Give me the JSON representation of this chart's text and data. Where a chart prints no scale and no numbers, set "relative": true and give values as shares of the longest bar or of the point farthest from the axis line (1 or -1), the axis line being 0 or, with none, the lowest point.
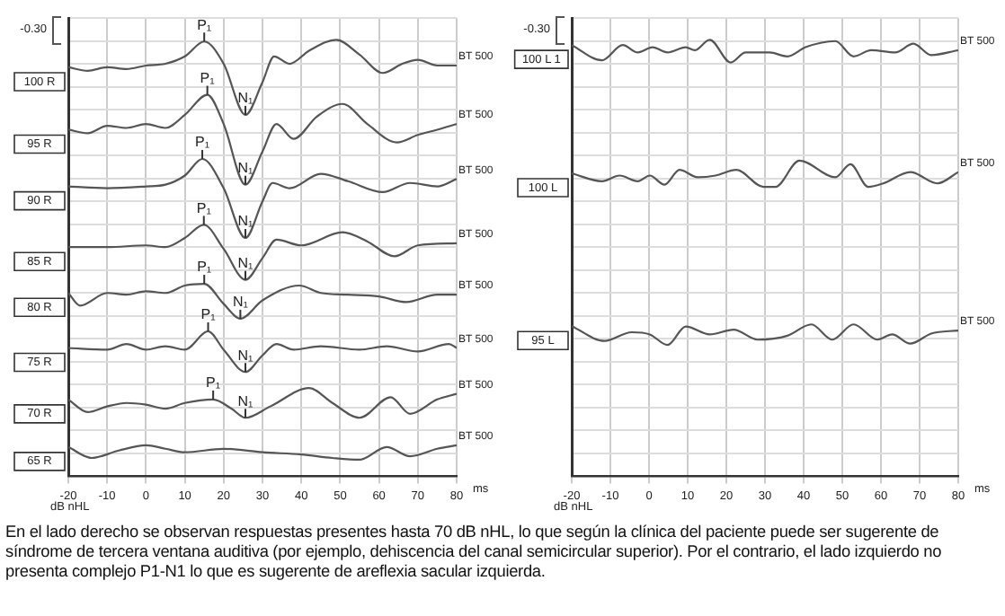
{
  "chart_data": [
    {
      "type": "line",
      "relative": true,
      "xlabel": "ms",
      "xlim": [
        -20,
        80
      ],
      "xticks": [
        -20,
        -10,
        0,
        10,
        20,
        30,
        40,
        50,
        60,
        70,
        80
      ],
      "grid": true,
      "marker": "none",
      "line_style": "solid",
      "series": [
        {
          "name": "100 R",
          "color": "#555555",
          "x": [
            -20,
            -15,
            -10,
            -5,
            0,
            5,
            10,
            15,
            20,
            25.6,
            30,
            33,
            37,
            42,
            49,
            55,
            61,
            66,
            70,
            75,
            80
          ],
          "values": [
            0.937,
            0.929,
            0.937,
            0.933,
            0.941,
            0.945,
            0.962,
            0.996,
            0.945,
            0.828,
            0.903,
            0.962,
            0.945,
            0.975,
            1.0,
            0.966,
            0.924,
            0.945,
            0.954,
            0.941,
            0.941
          ]
        },
        {
          "name": "95 R",
          "color": "#555555",
          "x": [
            -20,
            -15,
            -10,
            -5,
            0,
            5,
            10,
            15.8,
            20,
            25.6,
            30,
            33.6,
            38,
            44,
            50.6,
            57,
            64.6,
            70,
            75,
            80
          ],
          "values": [
            0.794,
            0.786,
            0.803,
            0.798,
            0.807,
            0.798,
            0.828,
            0.874,
            0.807,
            0.668,
            0.744,
            0.807,
            0.773,
            0.824,
            0.853,
            0.807,
            0.765,
            0.782,
            0.794,
            0.807
          ]
        },
        {
          "name": "90 R",
          "color": "#555555",
          "x": [
            -20,
            -10,
            0,
            5,
            10,
            14.5,
            20,
            25.6,
            30,
            32.6,
            37,
            45,
            52,
            61,
            68,
            75,
            80
          ],
          "values": [
            0.664,
            0.66,
            0.664,
            0.668,
            0.689,
            0.727,
            0.66,
            0.546,
            0.63,
            0.672,
            0.66,
            0.693,
            0.676,
            0.651,
            0.672,
            0.664,
            0.681
          ]
        },
        {
          "name": "85 R",
          "color": "#555555",
          "x": [
            -20,
            -10,
            0,
            5,
            10,
            14.9,
            20,
            25.6,
            30,
            33.6,
            40,
            50.6,
            57,
            64,
            70,
            80
          ],
          "values": [
            0.525,
            0.525,
            0.529,
            0.525,
            0.546,
            0.576,
            0.521,
            0.45,
            0.5,
            0.542,
            0.529,
            0.559,
            0.538,
            0.504,
            0.529,
            0.534
          ]
        },
        {
          "name": "80 R",
          "color": "#555555",
          "x": [
            -20,
            -17,
            -10,
            -5,
            0,
            5,
            10,
            15,
            20,
            24.3,
            30,
            39.5,
            45,
            52,
            60,
            67,
            75,
            80
          ],
          "values": [
            0.42,
            0.391,
            0.42,
            0.416,
            0.424,
            0.42,
            0.437,
            0.441,
            0.395,
            0.361,
            0.403,
            0.437,
            0.42,
            0.416,
            0.412,
            0.399,
            0.416,
            0.416
          ]
        },
        {
          "name": "75 R",
          "color": "#555555",
          "x": [
            -20,
            -10,
            -5,
            0,
            5,
            10,
            16,
            20,
            25.6,
            30,
            33.6,
            38,
            45,
            55,
            62,
            70,
            78,
            80
          ],
          "values": [
            0.294,
            0.29,
            0.303,
            0.29,
            0.298,
            0.29,
            0.332,
            0.29,
            0.239,
            0.277,
            0.303,
            0.29,
            0.298,
            0.29,
            0.298,
            0.286,
            0.303,
            0.294
          ]
        },
        {
          "name": "70 R",
          "color": "#555555",
          "x": [
            -20,
            -15,
            -10,
            -5,
            0,
            5,
            10,
            17.3,
            22,
            25.6,
            32,
            42,
            48,
            55,
            63,
            68,
            75,
            80
          ],
          "values": [
            0.176,
            0.147,
            0.16,
            0.168,
            0.164,
            0.155,
            0.168,
            0.176,
            0.155,
            0.134,
            0.16,
            0.202,
            0.168,
            0.134,
            0.181,
            0.143,
            0.176,
            0.189
          ]
        },
        {
          "name": "65 R",
          "color": "#555555",
          "x": [
            -20,
            -14,
            -7,
            0,
            5,
            10,
            20,
            30,
            40,
            48,
            55,
            62,
            68,
            75,
            80
          ],
          "values": [
            0.067,
            0.042,
            0.059,
            0.071,
            0.063,
            0.055,
            0.063,
            0.055,
            0.05,
            0.042,
            0.038,
            0.067,
            0.046,
            0.063,
            0.071
          ]
        }
      ],
      "annotations": [
        "-0.30",
        "dB nHL",
        "En el lado derecho se observan respuestas presentes hasta 70 dB nHL, lo que según la clínica del paciente puede ser sugerente de síndrome de tercera ventana auditiva (por ejemplo, dehiscencia del canal semicircular superior). Por el contrario, el lado izquierdo no presenta complejo P1-N1 lo que es sugerente de areflexia sacular izquierda.",
        {
          "text": "P₁",
          "x": 15,
          "y": 0.996
        },
        {
          "text": "N₁",
          "x": 25.6,
          "y": 0.828
        },
        {
          "text": "P₁",
          "x": 15.8,
          "y": 0.874
        },
        {
          "text": "N₁",
          "x": 25.6,
          "y": 0.668
        },
        {
          "text": "P₁",
          "x": 14.5,
          "y": 0.727
        },
        {
          "text": "N₁",
          "x": 25.6,
          "y": 0.546
        },
        {
          "text": "P₁",
          "x": 14.9,
          "y": 0.576
        },
        {
          "text": "N₁",
          "x": 25.6,
          "y": 0.45
        },
        {
          "text": "P₁",
          "x": 15,
          "y": 0.441
        },
        {
          "text": "N₁",
          "x": 24.3,
          "y": 0.361
        },
        {
          "text": "P₁",
          "x": 16,
          "y": 0.332
        },
        {
          "text": "N₁",
          "x": 25.6,
          "y": 0.239
        },
        {
          "text": "P₁",
          "x": 17.3,
          "y": 0.176
        },
        {
          "text": "N₁",
          "x": 25.6,
          "y": 0.134
        },
        {
          "text": "BT 500",
          "x": 80,
          "y": 0.941
        },
        {
          "text": "BT 500",
          "x": 80,
          "y": 0.807
        },
        {
          "text": "BT 500",
          "x": 80,
          "y": 0.681
        },
        {
          "text": "BT 500",
          "x": 80,
          "y": 0.534
        },
        {
          "text": "BT 500",
          "x": 80,
          "y": 0.416
        },
        {
          "text": "BT 500",
          "x": 80,
          "y": 0.294
        },
        {
          "text": "BT 500",
          "x": 80,
          "y": 0.189
        },
        {
          "text": "BT 500",
          "x": 80,
          "y": 0.071
        }
      ]
    },
    {
      "type": "line",
      "relative": true,
      "xlabel": "ms",
      "xlim": [
        -20,
        80
      ],
      "xticks": [
        -20,
        -10,
        0,
        10,
        20,
        30,
        40,
        50,
        60,
        70,
        80
      ],
      "grid": true,
      "marker": "none",
      "line_style": "solid",
      "series": [
        {
          "name": "100 L 1",
          "color": "#555555",
          "x": [
            -20,
            -12.2,
            -6.8,
            -2.9,
            0.9,
            4.8,
            9.5,
            11.8,
            15.7,
            21.1,
            25,
            31.2,
            35.8,
            40.5,
            48.2,
            52.9,
            57.5,
            63.7,
            68.4,
            73,
            80
          ],
          "values": [
            0.988,
            0.953,
            0.988,
            0.971,
            0.983,
            0.971,
            0.983,
            0.976,
            1.0,
            0.948,
            0.971,
            0.971,
            0.962,
            0.983,
            0.997,
            0.962,
            0.976,
            0.971,
            0.991,
            0.965,
            0.976
          ]
        },
        {
          "name": "100 L",
          "color": "#555555",
          "x": [
            -20,
            -12.2,
            -7.6,
            -2.9,
            0.2,
            4,
            7.9,
            12.6,
            17.2,
            22.6,
            29.6,
            32.7,
            38.9,
            48.2,
            52.1,
            56.7,
            60.6,
            67.6,
            74.6,
            80
          ],
          "values": [
            0.694,
            0.676,
            0.689,
            0.676,
            0.689,
            0.668,
            0.702,
            0.685,
            0.689,
            0.702,
            0.663,
            0.663,
            0.723,
            0.685,
            0.715,
            0.663,
            0.671,
            0.697,
            0.671,
            0.697
          ]
        },
        {
          "name": "95 L",
          "color": "#555555",
          "x": [
            -20,
            -11.5,
            -4.5,
            0.2,
            4.8,
            9.5,
            15.7,
            21.9,
            28.1,
            35.8,
            42,
            47.4,
            52.9,
            59.1,
            62.9,
            67.6,
            73,
            80
          ],
          "values": [
            0.344,
            0.31,
            0.33,
            0.325,
            0.301,
            0.343,
            0.325,
            0.336,
            0.313,
            0.322,
            0.348,
            0.313,
            0.348,
            0.313,
            0.325,
            0.304,
            0.327,
            0.334
          ]
        }
      ],
      "annotations": [
        "-0.30",
        "dB nHL",
        {
          "text": "BT 500",
          "x": 80,
          "y": 0.976
        },
        {
          "text": "BT 500",
          "x": 80,
          "y": 0.697
        },
        {
          "text": "BT 500",
          "x": 80,
          "y": 0.334
        }
      ]
    }
  ]
}
